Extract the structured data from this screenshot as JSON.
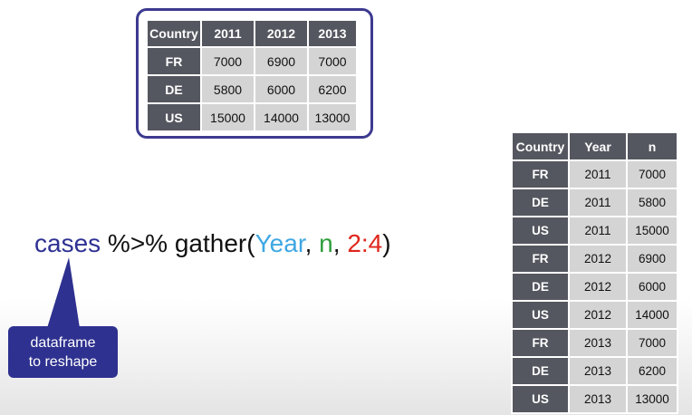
{
  "wide_table": {
    "headers": [
      "Country",
      "2011",
      "2012",
      "2013"
    ],
    "rows": [
      [
        "FR",
        "7000",
        "6900",
        "7000"
      ],
      [
        "DE",
        "5800",
        "6000",
        "6200"
      ],
      [
        "US",
        "15000",
        "14000",
        "13000"
      ]
    ]
  },
  "long_table": {
    "headers": [
      "Country",
      "Year",
      "n"
    ],
    "rows": [
      [
        "FR",
        "2011",
        "7000"
      ],
      [
        "DE",
        "2011",
        "5800"
      ],
      [
        "US",
        "2011",
        "15000"
      ],
      [
        "FR",
        "2012",
        "6900"
      ],
      [
        "DE",
        "2012",
        "6000"
      ],
      [
        "US",
        "2012",
        "14000"
      ],
      [
        "FR",
        "2013",
        "7000"
      ],
      [
        "DE",
        "2013",
        "6200"
      ],
      [
        "US",
        "2013",
        "13000"
      ]
    ]
  },
  "code": {
    "object": "cases",
    "pipe": " %>% ",
    "func": "gather(",
    "arg_year": "Year",
    "sep1": ", ",
    "arg_n": "n",
    "sep2": ", ",
    "arg_range": "2:4",
    "close": ")"
  },
  "callout": {
    "line1": "dataframe",
    "line2": "to reshape"
  },
  "colors": {
    "header_bg": "#555760",
    "cell_bg": "#d4d4d4",
    "frame": "#3c3a8f",
    "callout_bg": "#2e318f",
    "year_color": "#3fa7e2",
    "n_color": "#2d9d3c",
    "range_color": "#e0261b"
  }
}
